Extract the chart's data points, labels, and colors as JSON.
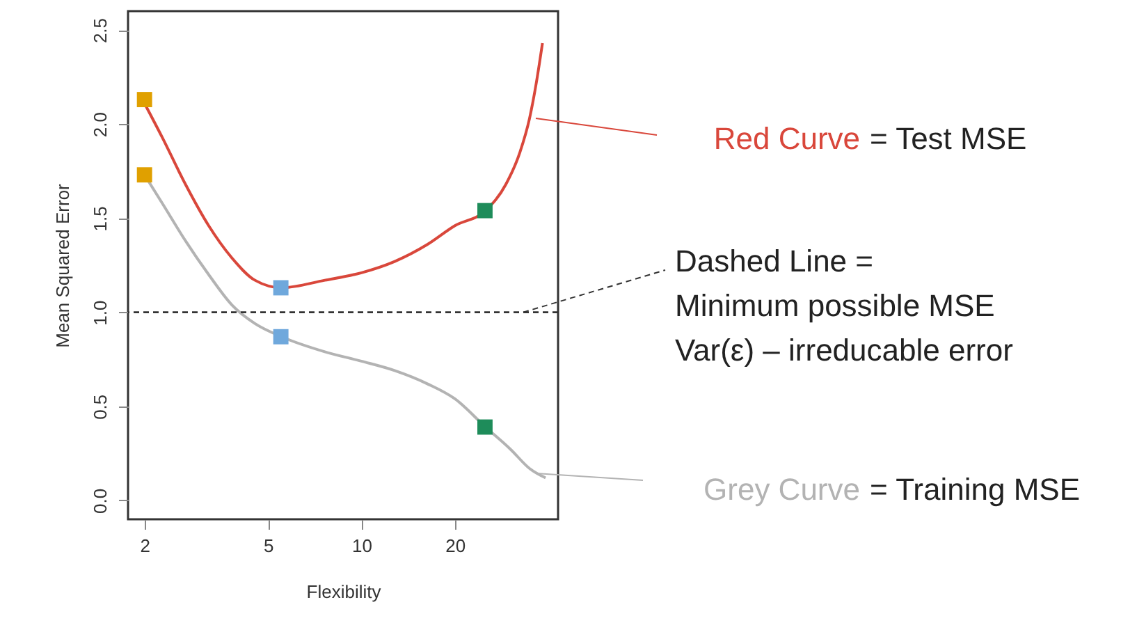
{
  "chart_data": {
    "type": "line",
    "xlabel": "Flexibility",
    "ylabel": "Mean Squared Error",
    "log": "x",
    "xlim": [
      1.77,
      43
    ],
    "xticks": [
      2,
      5,
      10,
      20
    ],
    "ylim": [
      -0.1,
      2.6
    ],
    "yticks": [
      {
        "value": 0,
        "label": "0.0"
      },
      {
        "value": 0.5,
        "label": "0.5"
      },
      {
        "value": 1,
        "label": "1.0"
      },
      {
        "value": 1.5,
        "label": "1.5"
      },
      {
        "value": 2,
        "label": "2.0"
      },
      {
        "value": 2.5,
        "label": "2.5"
      }
    ],
    "grid": false,
    "legend": "right",
    "series": [
      {
        "name": "Red Curve",
        "type": "line",
        "color": "#d9473b",
        "x": [
          2,
          2.28,
          2.71,
          3.22,
          3.82,
          4.54,
          5.53,
          7.62,
          10.0,
          12.8,
          16.3,
          20.0,
          25.1,
          29.2,
          32.4,
          34.8,
          36.6,
          38.3
        ],
        "values": [
          2.11,
          1.93,
          1.68,
          1.46,
          1.29,
          1.17,
          1.13,
          1.17,
          1.21,
          1.27,
          1.36,
          1.46,
          1.54,
          1.68,
          1.85,
          2.03,
          2.22,
          2.43
        ]
      },
      {
        "name": "Grey Curve",
        "type": "line",
        "color": "#b3b3b3",
        "x": [
          2,
          2.28,
          2.71,
          3.22,
          3.82,
          4.54,
          5.53,
          7.62,
          10.0,
          12.8,
          16.3,
          20.0,
          25.1,
          30.3,
          34.8,
          39.2
        ],
        "values": [
          1.73,
          1.58,
          1.38,
          1.2,
          1.04,
          0.94,
          0.87,
          0.79,
          0.74,
          0.69,
          0.62,
          0.54,
          0.39,
          0.27,
          0.17,
          0.12
        ]
      },
      {
        "type": "scatter",
        "marker": "square",
        "x": [
          2,
          5.5,
          25
        ],
        "values": [
          2.13,
          1.13,
          1.54
        ],
        "colors": [
          "#e0a000",
          "#6fa8dc",
          "#1e8c5a"
        ]
      },
      {
        "type": "scatter",
        "marker": "square",
        "x": [
          2,
          5.5,
          25
        ],
        "values": [
          1.73,
          0.87,
          0.39
        ],
        "colors": [
          "#e0a000",
          "#6fa8dc",
          "#1e8c5a"
        ]
      }
    ],
    "ref_lines": [
      {
        "axis": "y",
        "value": 1,
        "label": "Dashed Line =\nMinimum possible MSE\nVar(ε) – irreducable error",
        "color": "#333333",
        "line_style": "dashed"
      }
    ],
    "annotations": [
      "= Test MSE",
      "= Training MSE"
    ]
  }
}
